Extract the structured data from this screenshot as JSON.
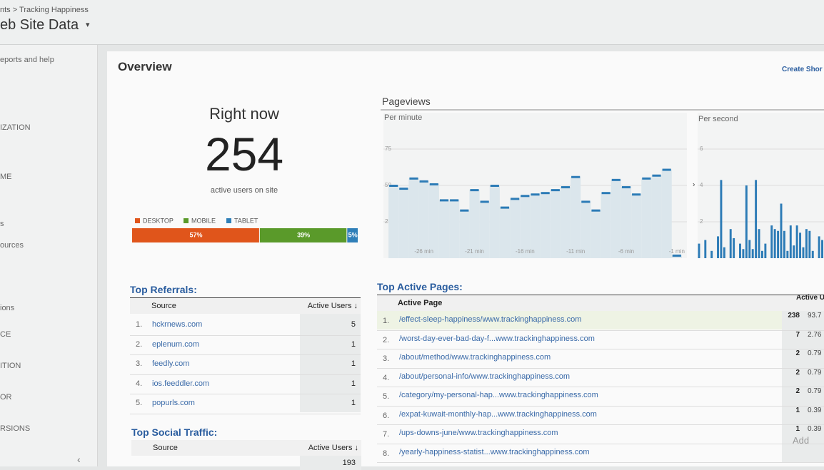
{
  "header": {
    "breadcrumb": "nts > Tracking Happiness",
    "title": "eb Site Data"
  },
  "sidebar": {
    "items": [
      "eports and help",
      "IZATION",
      "ME",
      "s",
      "ources",
      "ions",
      "CE",
      "ITION",
      "OR",
      "RSIONS"
    ]
  },
  "overview": {
    "title": "Overview",
    "shortcut": "Create Shor"
  },
  "right_now": {
    "label": "Right now",
    "value": 254,
    "caption": "active users on site"
  },
  "chart_data": [
    {
      "type": "stacked-bar",
      "categories": [
        "DESKTOP",
        "MOBILE",
        "TABLET"
      ],
      "values": [
        57,
        39,
        5
      ],
      "value_labels": [
        "57%",
        "39%",
        "5%"
      ],
      "colors": [
        "#e0551b",
        "#5a9a2a",
        "#2f7fb8"
      ]
    },
    {
      "type": "bar",
      "title": "Pageviews",
      "subtitle": "Per minute",
      "color": "#2c7bb6",
      "x": [
        -29,
        -28,
        -27,
        -26,
        -25,
        -24,
        -23,
        -22,
        -21,
        -20,
        -19,
        -18,
        -17,
        -16,
        -15,
        -14,
        -13,
        -12,
        -11,
        -10,
        -9,
        -8,
        -7,
        -6,
        -5,
        -4,
        -3,
        -2,
        -1
      ],
      "values": [
        50,
        48,
        55,
        53,
        51,
        40,
        40,
        33,
        47,
        39,
        50,
        35,
        41,
        43,
        44,
        45,
        47,
        49,
        56,
        39,
        33,
        45,
        54,
        49,
        44,
        55,
        57,
        61,
        2
      ],
      "xlim": [
        -30,
        0
      ],
      "xticks": [
        {
          "value": -26,
          "label": "-26 min"
        },
        {
          "value": -21,
          "label": "-21 min"
        },
        {
          "value": -16,
          "label": "-16 min"
        },
        {
          "value": -11,
          "label": "-11 min"
        },
        {
          "value": -6,
          "label": "-6 min"
        },
        {
          "value": -1,
          "label": "-1 min"
        }
      ],
      "ylim": [
        0,
        100
      ],
      "yticks": [
        25,
        50,
        75
      ],
      "grid": true
    },
    {
      "type": "bar",
      "subtitle": "Per second",
      "color": "#2c7bb6",
      "values": [
        0.8,
        0,
        1,
        0,
        0.4,
        0,
        1.2,
        4.3,
        0.6,
        0,
        1.6,
        1.1,
        0,
        0.8,
        0.5,
        4.0,
        1,
        0.5,
        4.3,
        1.6,
        0.4,
        0.8,
        0,
        1.8,
        1.6,
        1.5,
        3.0,
        1.5,
        0.4,
        1.8,
        0.7,
        1.8,
        1.4,
        0.6,
        1.6,
        1.5,
        0.4,
        0,
        1.2,
        1.0
      ],
      "ylim": [
        0,
        8
      ],
      "yticks": [
        2,
        4,
        6
      ],
      "grid": true
    }
  ],
  "referrals": {
    "title": "Top Referrals:",
    "columns": [
      "Source",
      "Active Users ↓"
    ],
    "rows": [
      [
        "1.",
        "hckrnews.com",
        5
      ],
      [
        "2.",
        "eplenum.com",
        1
      ],
      [
        "3.",
        "feedly.com",
        1
      ],
      [
        "4.",
        "ios.feeddler.com",
        1
      ],
      [
        "5.",
        "popurls.com",
        1
      ]
    ]
  },
  "social": {
    "title": "Top Social Traffic:",
    "columns": [
      "Source",
      "Active Users ↓"
    ],
    "first_row_users": 193
  },
  "pages": {
    "title": "Top Active Pages:",
    "columns": [
      "Active Page",
      "Active U"
    ],
    "rows": [
      [
        "1.",
        "/effect-sleep-happiness/www.trackinghappiness.com",
        238,
        "93.7"
      ],
      [
        "2.",
        "/worst-day-ever-bad-day-f...www.trackinghappiness.com",
        7,
        "2.76"
      ],
      [
        "3.",
        "/about/method/www.trackinghappiness.com",
        2,
        "0.79"
      ],
      [
        "4.",
        "/about/personal-info/www.trackinghappiness.com",
        2,
        "0.79"
      ],
      [
        "5.",
        "/category/my-personal-hap...www.trackinghappiness.com",
        2,
        "0.79"
      ],
      [
        "6.",
        "/expat-kuwait-monthly-hap...www.trackinghappiness.com",
        1,
        "0.39"
      ],
      [
        "7.",
        "/ups-downs-june/www.trackinghappiness.com",
        1,
        "0.39"
      ],
      [
        "8.",
        "/yearly-happiness-statist...www.trackinghappiness.com"
      ]
    ],
    "add": "Add"
  }
}
